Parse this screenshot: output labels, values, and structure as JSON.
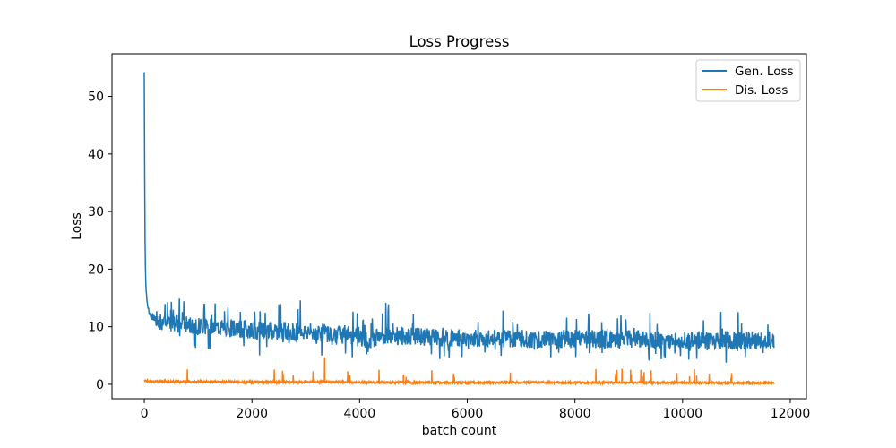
{
  "chart_data": {
    "type": "line",
    "title": "Loss Progress",
    "xlabel": "batch count",
    "ylabel": "Loss",
    "xlim": [
      -600,
      12300
    ],
    "ylim": [
      -2.5,
      57.4
    ],
    "xticks": [
      0,
      2000,
      4000,
      6000,
      8000,
      10000,
      12000
    ],
    "xtick_labels": [
      "0",
      "2000",
      "4000",
      "6000",
      "8000",
      "10000",
      "12000"
    ],
    "yticks": [
      0,
      10,
      20,
      30,
      40,
      50
    ],
    "ytick_labels": [
      "0",
      "10",
      "20",
      "30",
      "40",
      "50"
    ],
    "grid": false,
    "legend_position": "upper right",
    "series": [
      {
        "name": "Gen. Loss",
        "color": "#1f77b4",
        "x": [
          0,
          10,
          20,
          30,
          50,
          80,
          120,
          200,
          300,
          500,
          800,
          1000,
          1500,
          2000,
          2500,
          3000,
          3300,
          3500,
          4000,
          4100,
          4500,
          4700,
          5000,
          5500,
          6000,
          6500,
          7000,
          7500,
          8000,
          8500,
          9000,
          9500,
          10000,
          10500,
          11000,
          11500,
          11700
        ],
        "values": [
          54.2,
          28,
          21,
          17,
          14.5,
          12.8,
          12,
          11.3,
          10.8,
          10.5,
          10.3,
          10.1,
          9.8,
          9.5,
          9.3,
          9.1,
          9.0,
          8.8,
          8.5,
          7.5,
          8.6,
          8.4,
          8.3,
          8.2,
          8.0,
          8.0,
          7.9,
          7.8,
          7.9,
          7.8,
          7.8,
          7.7,
          7.6,
          7.7,
          7.6,
          7.6,
          7.7
        ]
      },
      {
        "name": "Dis. Loss",
        "color": "#ff7f0e",
        "x": [
          0,
          100,
          300,
          500,
          1000,
          2000,
          3000,
          4000,
          5000,
          6000,
          7000,
          8000,
          9000,
          10000,
          11000,
          11700
        ],
        "values": [
          0.7,
          0.5,
          0.5,
          0.45,
          0.45,
          0.4,
          0.4,
          0.35,
          0.3,
          0.3,
          0.3,
          0.3,
          0.3,
          0.28,
          0.25,
          0.25
        ]
      }
    ]
  }
}
